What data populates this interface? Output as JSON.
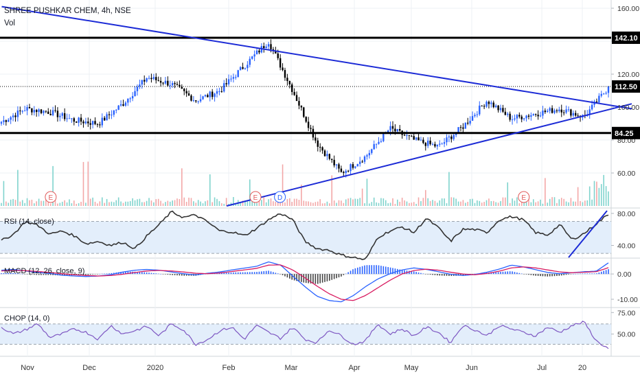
{
  "header": {
    "symbol_line": "SHREE PUSHKAR CHEM, 4h, NSE",
    "volume_label": "Vol"
  },
  "colors": {
    "up": "#2962ff",
    "down": "#000000",
    "trendline": "#1c2bd6",
    "level_line": "#000000",
    "rsi_line": "#333333",
    "macd_line": "#2962ff",
    "signal_line": "#d81b60",
    "chop_line": "#7e57c2",
    "band_fill": "#e3eefb",
    "grid": "#eef1f4",
    "vol_up": "#7fd3cd",
    "vol_down": "#f3a7a7",
    "event_circle": "#e05a5a",
    "dividend_circle": "#2962ff"
  },
  "chart_data": [
    {
      "type": "candlestick",
      "panel": "price",
      "title": "SHREE PUSHKAR CHEM, 4h, NSE",
      "ylim": [
        40,
        165
      ],
      "ytick_labels": [
        "160.00",
        "140.00",
        "120.00",
        "100.00",
        "80.00",
        "60.00"
      ],
      "y_ticks": [
        160,
        140,
        120,
        100,
        80,
        60
      ],
      "x_labels": [
        "Nov",
        "Dec",
        "2020",
        "Feb",
        "Mar",
        "Apr",
        "May",
        "Jun",
        "Jul",
        "20"
      ],
      "price_series": [
        {
          "x": "Oct",
          "y": 91
        },
        {
          "x": "Nov",
          "y": 99
        },
        {
          "x": "mid-Nov",
          "y": 97
        },
        {
          "x": "Dec",
          "y": 92
        },
        {
          "x": "late-Dec",
          "y": 90
        },
        {
          "x": "early-Jan",
          "y": 102
        },
        {
          "x": "2020",
          "y": 118
        },
        {
          "x": "mid-Jan",
          "y": 114
        },
        {
          "x": "late-Jan",
          "y": 104
        },
        {
          "x": "Feb",
          "y": 110
        },
        {
          "x": "mid-Feb",
          "y": 125
        },
        {
          "x": "peak",
          "y": 140
        },
        {
          "x": "Mar",
          "y": 110
        },
        {
          "x": "mid-Mar",
          "y": 78
        },
        {
          "x": "late-Mar",
          "y": 60
        },
        {
          "x": "Apr",
          "y": 70
        },
        {
          "x": "mid-Apr",
          "y": 87
        },
        {
          "x": "May",
          "y": 80
        },
        {
          "x": "mid-May",
          "y": 76
        },
        {
          "x": "Jun",
          "y": 88
        },
        {
          "x": "mid-Jun",
          "y": 104
        },
        {
          "x": "late-Jun",
          "y": 93
        },
        {
          "x": "Jul",
          "y": 96
        },
        {
          "x": "mid-Jul",
          "y": 99
        },
        {
          "x": "late-Jul",
          "y": 94
        },
        {
          "x": "20",
          "y": 112
        }
      ],
      "horizontal_levels": [
        {
          "value": 142.1,
          "label": "142.10"
        },
        {
          "value": 84.25,
          "label": "84.25"
        }
      ],
      "last_price": {
        "value": 112.5,
        "label": "112.50"
      },
      "trendlines": [
        {
          "name": "descending",
          "from": [
            2.5,
            161
          ],
          "to": [
            920,
            99
          ]
        },
        {
          "name": "ascending",
          "from": [
            330,
            40
          ],
          "to": [
            920,
            102
          ]
        }
      ],
      "events": [
        {
          "letter": "E",
          "kind": "earnings",
          "x_frac": 0.083
        },
        {
          "letter": "E",
          "kind": "earnings",
          "x_frac": 0.418
        },
        {
          "letter": "D",
          "kind": "dividend",
          "x_frac": 0.458
        },
        {
          "letter": "E",
          "kind": "earnings",
          "x_frac": 0.857
        }
      ]
    },
    {
      "type": "line",
      "panel": "rsi",
      "title": "RSI (14, close)",
      "ylim": [
        25,
        85
      ],
      "ytick_labels": [
        "80.00",
        "40.00"
      ],
      "y_ticks": [
        80,
        40
      ],
      "band": [
        30,
        70
      ],
      "values": [
        46,
        54,
        70,
        65,
        54,
        58,
        52,
        42,
        45,
        40,
        44,
        36,
        52,
        66,
        82,
        75,
        78,
        69,
        58,
        57,
        52,
        61,
        72,
        80,
        72,
        45,
        36,
        34,
        28,
        25,
        22,
        50,
        58,
        63,
        56,
        74,
        62,
        45,
        60,
        60,
        56,
        72,
        76,
        72,
        56,
        53,
        66,
        47,
        55,
        67,
        79
      ]
    },
    {
      "type": "line",
      "panel": "macd",
      "title": "MACD (12, 26, close, 9)",
      "ylim": [
        -13,
        6
      ],
      "ytick_labels": [
        "0.00",
        "-10.00"
      ],
      "y_ticks": [
        0,
        -10
      ],
      "macd": [
        1.5,
        1.8,
        1.2,
        0.6,
        0.2,
        -0.5,
        -0.8,
        -1,
        -0.8,
        -0.3,
        0.8,
        1.5,
        1.8,
        1.5,
        0.8,
        0.1,
        -0.4,
        0.3,
        0.8,
        1.6,
        2.3,
        3,
        4.8,
        3.5,
        -0.8,
        -5,
        -8.8,
        -10.5,
        -11,
        -8.5,
        -5,
        -2,
        0.1,
        1.6,
        2.4,
        1.8,
        0.9,
        -0.1,
        -0.6,
        -0.2,
        0.7,
        1.9,
        3.5,
        2.8,
        1.7,
        0.6,
        0.1,
        0.5,
        0.9,
        1.1,
        4.4
      ],
      "signal": [
        1.2,
        1.4,
        1.3,
        1,
        0.6,
        0.1,
        -0.3,
        -0.6,
        -0.8,
        -0.6,
        -0.1,
        0.6,
        1.2,
        1.4,
        1.2,
        0.8,
        0.3,
        0.1,
        0.4,
        1,
        1.6,
        2.2,
        3.5,
        3.6,
        1.6,
        -1.5,
        -4.8,
        -7.8,
        -10,
        -10.5,
        -8.5,
        -5.5,
        -2.5,
        0,
        1.4,
        1.9,
        1.5,
        0.7,
        0,
        -0.3,
        0.2,
        1.1,
        2.4,
        2.8,
        2.4,
        1.6,
        0.8,
        0.5,
        0.7,
        0.9,
        2.5
      ],
      "histogram": [
        0.3,
        0.4,
        -0.1,
        -0.4,
        -0.4,
        -0.6,
        -0.5,
        -0.4,
        0,
        0.3,
        0.9,
        0.9,
        0.6,
        0.1,
        -0.4,
        -0.7,
        -0.7,
        0.2,
        0.4,
        0.6,
        0.7,
        0.8,
        1.3,
        -0.1,
        -2.4,
        -3.5,
        -4,
        -2.7,
        -1,
        2,
        3.5,
        3.5,
        2.6,
        1.6,
        1,
        -0.1,
        -0.6,
        -0.8,
        -0.6,
        0.1,
        0.5,
        0.8,
        1.1,
        0,
        -0.7,
        -1,
        -0.7,
        0,
        0.2,
        0.2,
        1.9
      ]
    },
    {
      "type": "line",
      "panel": "chop",
      "title": "CHOP (14, 0)",
      "ylim": [
        25,
        80
      ],
      "ytick_labels": [
        "75.00",
        "50.00"
      ],
      "y_ticks": [
        75,
        50
      ],
      "band": [
        38.2,
        61.8
      ],
      "values": [
        58,
        50,
        55,
        62,
        46,
        50,
        56,
        52,
        44,
        60,
        50,
        54,
        59,
        48,
        62,
        55,
        38,
        44,
        54,
        58,
        44,
        60,
        52,
        45,
        58,
        44,
        40,
        55,
        48,
        38,
        42,
        62,
        50,
        56,
        48,
        58,
        52,
        40,
        60,
        55,
        48,
        60,
        56,
        52,
        48,
        58,
        52,
        60,
        64,
        42,
        33
      ]
    }
  ],
  "time_axis": [
    "Nov",
    "Dec",
    "2020",
    "Feb",
    "Mar",
    "Apr",
    "May",
    "Jun",
    "Jul",
    "20"
  ],
  "panel_titles": {
    "rsi": "RSI (14, close)",
    "macd": "MACD (12, 26, close, 9)",
    "chop": "CHOP (14, 0)"
  }
}
